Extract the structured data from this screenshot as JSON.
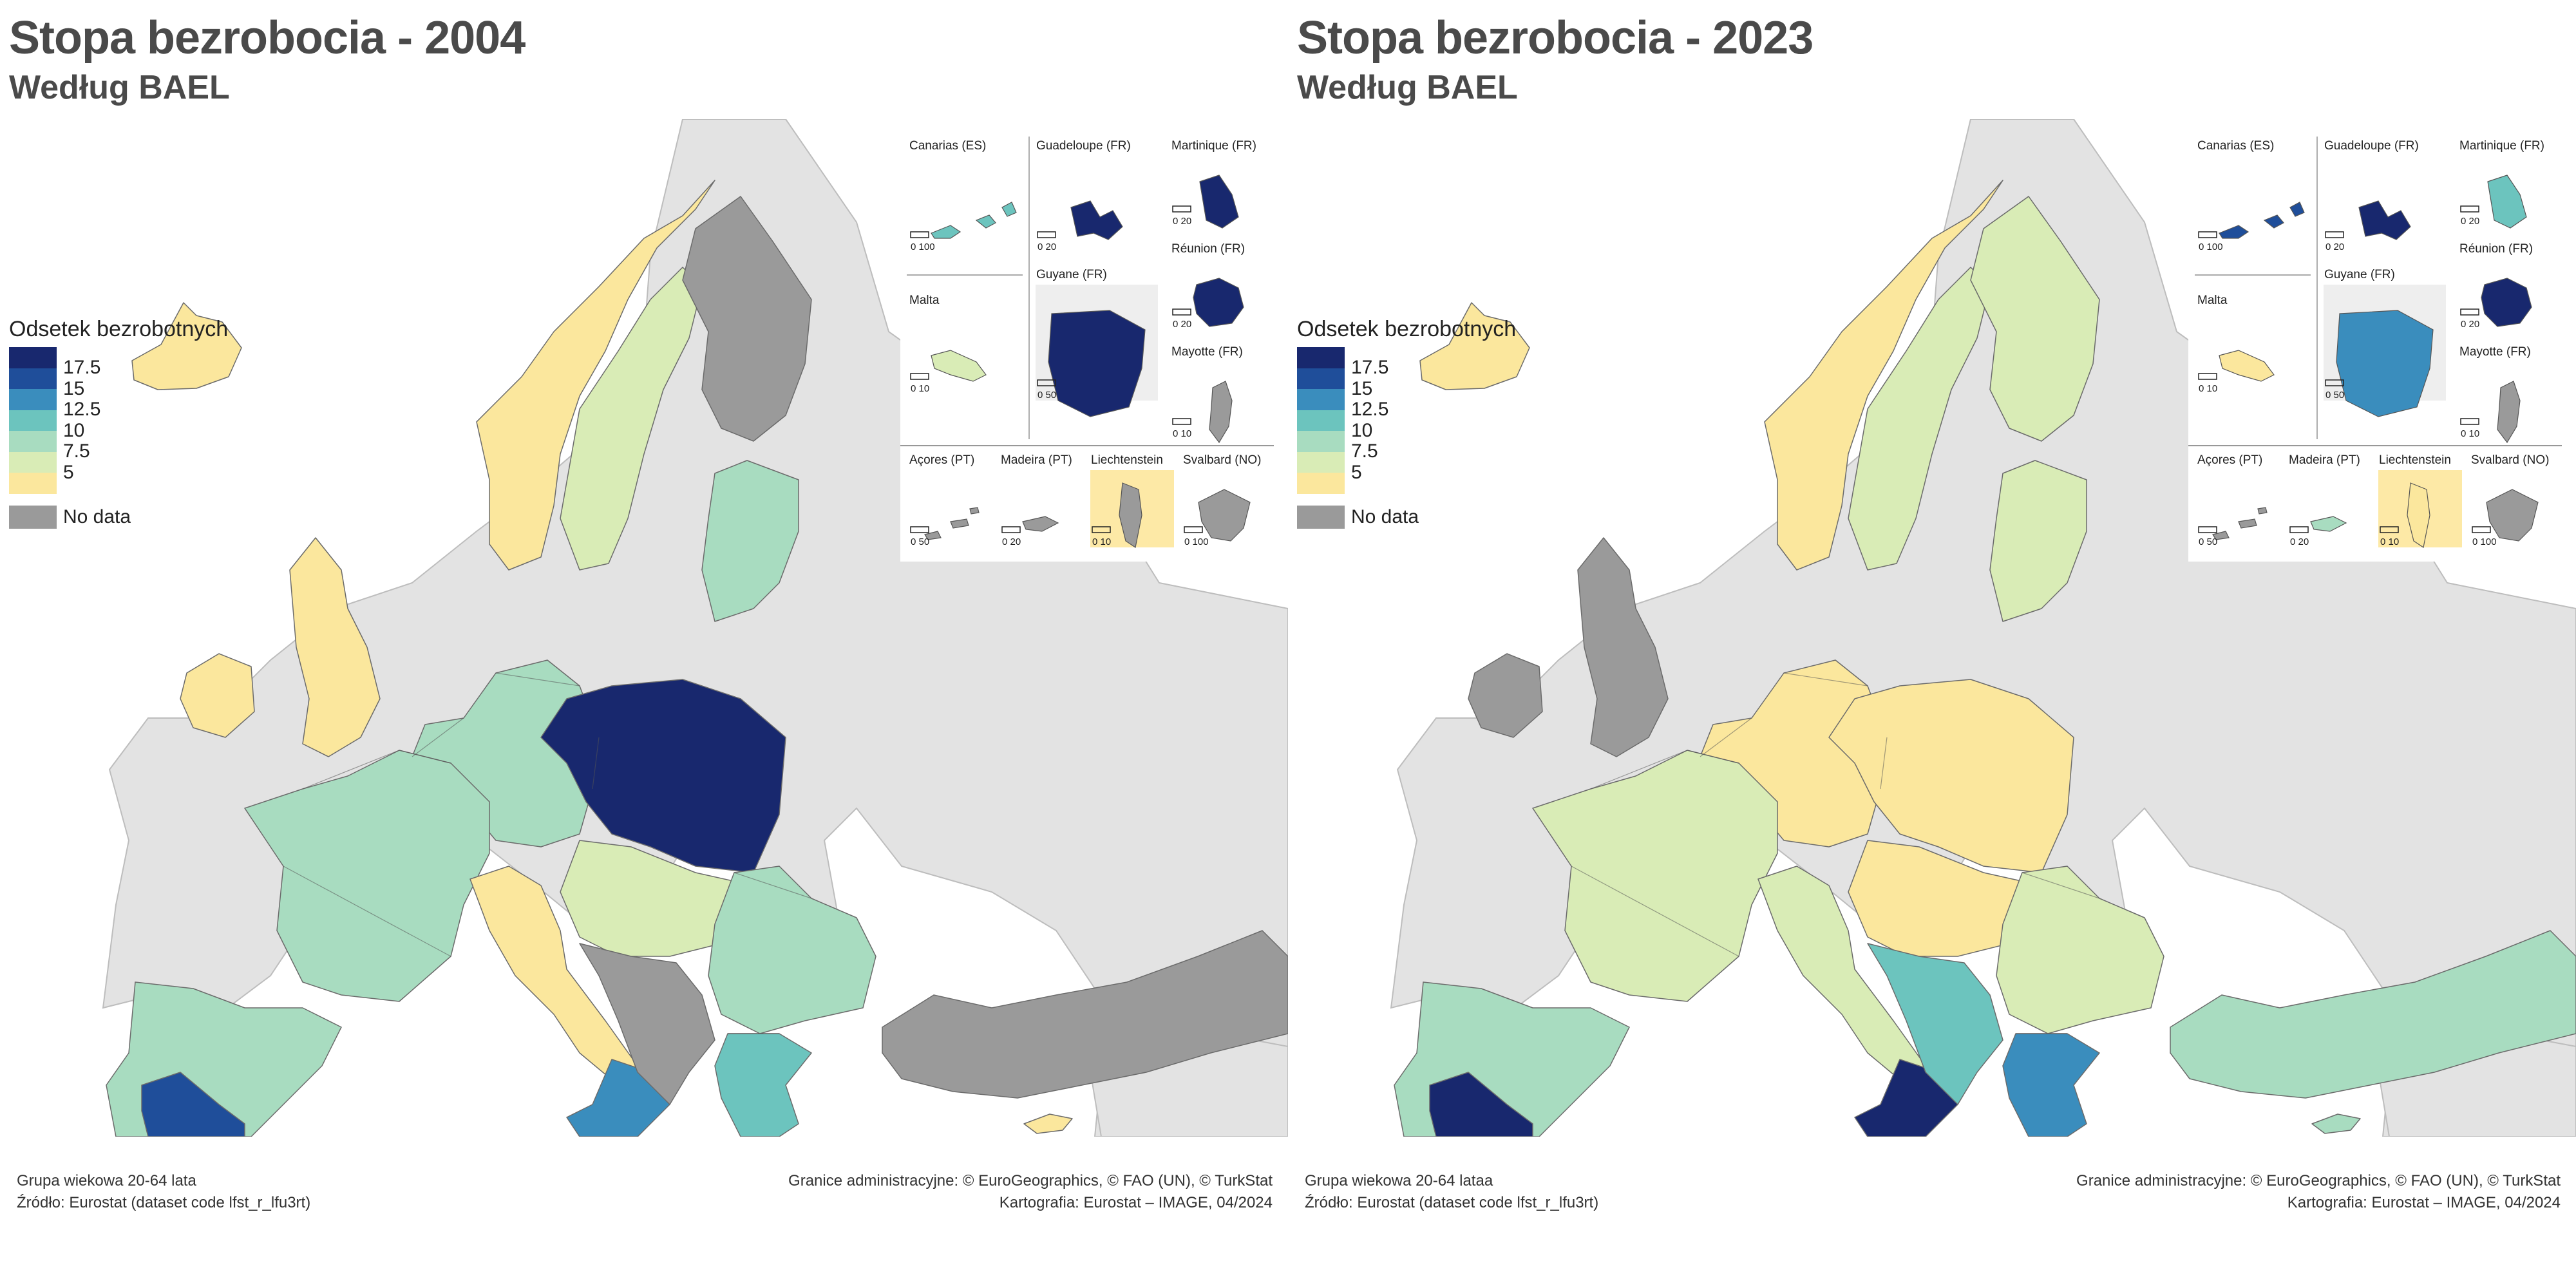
{
  "panels": [
    {
      "title": "Stopa bezrobocia - 2004",
      "subtitle": "Według BAEL",
      "footer_left": [
        "Grupa wiekowa 20-64 lata",
        "Źródło: Eurostat (dataset code lfst_r_lfu3rt)"
      ],
      "footer_right": [
        "Granice administracyjne: © EuroGeographics, © FAO (UN), © TurkStat",
        "Kartografia: Eurostat – IMAGE, 04/2024"
      ]
    },
    {
      "title": "Stopa bezrobocia - 2023",
      "subtitle": "Według BAEL",
      "footer_left": [
        "Grupa wiekowa 20-64 lataa",
        "Źródło: Eurostat (dataset code lfst_r_lfu3rt)"
      ],
      "footer_right": [
        "Granice administracyjne: © EuroGeographics, © FAO (UN), © TurkStat",
        "Kartografia: Eurostat – IMAGE, 04/2024"
      ]
    }
  ],
  "legend": {
    "title": "Odsetek bezrobotnych",
    "thresholds": [
      "17.5",
      "15",
      "12.5",
      "10",
      "7.5",
      "5"
    ],
    "colors": [
      "#18286e",
      "#1f4e9a",
      "#3a8dbd",
      "#6cc4be",
      "#a8dcc0",
      "#d9ecb6",
      "#fbe79d"
    ],
    "no_data_label": "No data",
    "no_data_color": "#9a9a9a",
    "sea_color": "#ffffff",
    "non_eu_color": "#e3e3e3"
  },
  "insets": {
    "labels": [
      "Canarias (ES)",
      "Guadeloupe (FR)",
      "Martinique (FR)",
      "Réunion (FR)",
      "Malta",
      "Guyane (FR)",
      "Mayotte (FR)",
      "Açores (PT)",
      "Madeira (PT)",
      "Liechtenstein",
      "Svalbard (NO)"
    ],
    "scales": [
      "0  100",
      "0  20",
      "0  20",
      "0  20",
      "0  10",
      "0  50",
      "0  10",
      "0  50",
      "0  20",
      "0  10",
      "0 100"
    ]
  },
  "maps": [
    {
      "regions": {
        "iceland": 6,
        "norway": 6,
        "sweden": 5,
        "finland": "nd",
        "baltics": 4,
        "uk_ireland": 6,
        "iberia": 4,
        "spain_south": 1,
        "france": 4,
        "benelux_germany": 4,
        "poland": 0,
        "czech_slovakia_hungary": 5,
        "italy_north": 6,
        "italy_south": 2,
        "balkans": "nd",
        "romania_bulgaria": 4,
        "greece": 3,
        "turkey": "nd",
        "cyprus": 6
      },
      "inset_colors": {
        "Canarias (ES)": 3,
        "Guadeloupe (FR)": 0,
        "Martinique (FR)": 0,
        "Réunion (FR)": 0,
        "Malta": 5,
        "Guyane (FR)": 0,
        "Mayotte (FR)": "nd",
        "Açores (PT)": "nd",
        "Madeira (PT)": "nd",
        "Liechtenstein": "nd",
        "Svalbard (NO)": "nd"
      }
    },
    {
      "regions": {
        "iceland": 6,
        "norway": 6,
        "sweden": 5,
        "finland": 5,
        "baltics": 5,
        "uk_ireland": "nd",
        "iberia": 4,
        "spain_south": 0,
        "france": 5,
        "benelux_germany": 6,
        "poland": 6,
        "czech_slovakia_hungary": 6,
        "italy_north": 5,
        "italy_south": 0,
        "balkans": 3,
        "romania_bulgaria": 5,
        "greece": 2,
        "turkey": 4,
        "cyprus": 4
      },
      "inset_colors": {
        "Canarias (ES)": 1,
        "Guadeloupe (FR)": 0,
        "Martinique (FR)": 3,
        "Réunion (FR)": 0,
        "Malta": 6,
        "Guyane (FR)": 2,
        "Mayotte (FR)": "nd",
        "Açores (PT)": "nd",
        "Madeira (PT)": 4,
        "Liechtenstein": 6,
        "Svalbard (NO)": "nd"
      }
    }
  ]
}
